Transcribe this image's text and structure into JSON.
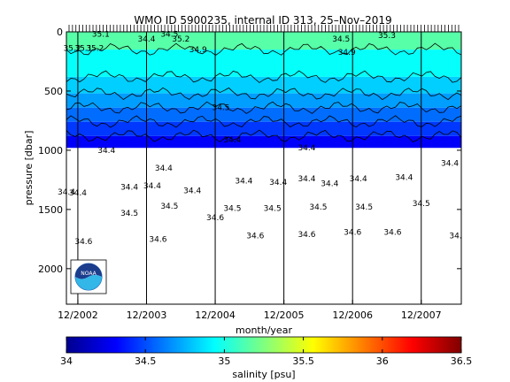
{
  "chart_data": {
    "type": "heatmap",
    "title": "WMO ID 5900235, internal ID 313, 25–Nov–2019",
    "xlabel": "month/year",
    "ylabel": "pressure [dbar]",
    "x_ticks": [
      "12/2002",
      "12/2003",
      "12/2004",
      "12/2005",
      "12/2006",
      "12/2007"
    ],
    "x_range": [
      "10/2002",
      "7/2008"
    ],
    "y_ticks": [
      0,
      500,
      1000,
      1500,
      2000
    ],
    "ylim": [
      2300,
      0
    ],
    "y_reversed": true,
    "colorbar": {
      "label": "salinity [psu]",
      "ticks": [
        "34",
        "34.5",
        "35",
        "35.5",
        "36",
        "36.5"
      ],
      "range": [
        34,
        36.5
      ],
      "colormap": "jet"
    },
    "profile_depth_dbar": 980,
    "upper_layer": {
      "description_of_values": "salinity decreases with depth",
      "contour_levels": [
        34.4,
        34.5,
        34.6,
        34.7,
        34.8,
        34.9,
        35,
        35.1,
        35.2
      ],
      "layers": [
        {
          "depth_range": [
            0,
            150
          ],
          "salinity": 35.15
        },
        {
          "depth_range": [
            150,
            380
          ],
          "salinity": 34.95
        },
        {
          "depth_range": [
            380,
            520
          ],
          "salinity": 34.82
        },
        {
          "depth_range": [
            520,
            640
          ],
          "salinity": 34.7
        },
        {
          "depth_range": [
            640,
            760
          ],
          "salinity": 34.58
        },
        {
          "depth_range": [
            760,
            880
          ],
          "salinity": 34.45
        },
        {
          "depth_range": [
            880,
            980
          ],
          "salinity": 34.3
        }
      ]
    },
    "contour_labels": [
      {
        "text": "35.1",
        "x": "4/2003",
        "p": 20
      },
      {
        "text": "35.2",
        "x": "11/2002",
        "p": 140
      },
      {
        "text": "35.1",
        "x": "1/2003",
        "p": 140
      },
      {
        "text": "35.2",
        "x": "3/2003",
        "p": 140
      },
      {
        "text": "34.4",
        "x": "12/2003",
        "p": 60
      },
      {
        "text": "35.2",
        "x": "6/2004",
        "p": 60
      },
      {
        "text": "34.5",
        "x": "4/2004",
        "p": 20
      },
      {
        "text": "34.9",
        "x": "9/2004",
        "p": 150
      },
      {
        "text": "34.5",
        "x": "1/2005",
        "p": 640
      },
      {
        "text": "34.4",
        "x": "3/2005",
        "p": 910
      },
      {
        "text": "34.5",
        "x": "10/2006",
        "p": 60
      },
      {
        "text": "34.9",
        "x": "11/2006",
        "p": 170
      },
      {
        "text": "35.3",
        "x": "6/2007",
        "p": 30
      },
      {
        "text": "34.4",
        "x": "4/2006",
        "p": 980
      },
      {
        "text": "34.4",
        "x": "5/2003",
        "p": 1000
      },
      {
        "text": "34.4",
        "x": "3/2004",
        "p": 1150
      },
      {
        "text": "34.4",
        "x": "10/2002",
        "p": 1350
      },
      {
        "text": "34.4",
        "x": "12/2002",
        "p": 1360
      },
      {
        "text": "34.4",
        "x": "9/2003",
        "p": 1310
      },
      {
        "text": "34.4",
        "x": "1/2004",
        "p": 1300
      },
      {
        "text": "34.4",
        "x": "8/2004",
        "p": 1340
      },
      {
        "text": "34.4",
        "x": "5/2005",
        "p": 1260
      },
      {
        "text": "34.4",
        "x": "11/2005",
        "p": 1270
      },
      {
        "text": "34.4",
        "x": "4/2006",
        "p": 1240
      },
      {
        "text": "34.4",
        "x": "8/2006",
        "p": 1280
      },
      {
        "text": "34.4",
        "x": "1/2007",
        "p": 1240
      },
      {
        "text": "34.4",
        "x": "9/2007",
        "p": 1230
      },
      {
        "text": "34.4",
        "x": "5/2008",
        "p": 1110
      },
      {
        "text": "34.5",
        "x": "9/2003",
        "p": 1530
      },
      {
        "text": "34.5",
        "x": "4/2004",
        "p": 1470
      },
      {
        "text": "34.5",
        "x": "3/2005",
        "p": 1490
      },
      {
        "text": "34.5",
        "x": "10/2005",
        "p": 1490
      },
      {
        "text": "34.5",
        "x": "6/2006",
        "p": 1480
      },
      {
        "text": "34.5",
        "x": "2/2007",
        "p": 1480
      },
      {
        "text": "34.5",
        "x": "12/2007",
        "p": 1450
      },
      {
        "text": "34.6",
        "x": "1/2003",
        "p": 1770
      },
      {
        "text": "34.6",
        "x": "2/2004",
        "p": 1750
      },
      {
        "text": "34.6",
        "x": "12/2004",
        "p": 1570
      },
      {
        "text": "34.6",
        "x": "7/2005",
        "p": 1720
      },
      {
        "text": "34.6",
        "x": "4/2006",
        "p": 1710
      },
      {
        "text": "34.6",
        "x": "12/2006",
        "p": 1690
      },
      {
        "text": "34.6",
        "x": "7/2007",
        "p": 1690
      },
      {
        "text": "34.",
        "x": "6/2008",
        "p": 1720
      }
    ],
    "logo": "NOAA"
  }
}
